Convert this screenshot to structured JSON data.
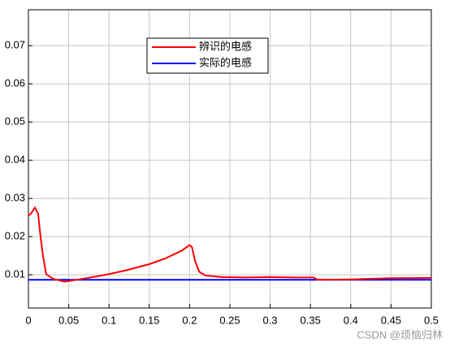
{
  "chart_data": {
    "type": "line",
    "x": [
      0,
      0.003,
      0.008,
      0.012,
      0.015,
      0.018,
      0.022,
      0.03,
      0.045,
      0.06,
      0.08,
      0.1,
      0.12,
      0.15,
      0.17,
      0.19,
      0.2,
      0.203,
      0.207,
      0.212,
      0.22,
      0.24,
      0.27,
      0.3,
      0.33,
      0.354,
      0.358,
      0.365,
      0.4,
      0.45,
      0.5
    ],
    "series": [
      {
        "name": "辨识的电感",
        "color": "#ff0000",
        "values": [
          0.0255,
          0.026,
          0.0276,
          0.026,
          0.02,
          0.015,
          0.0102,
          0.009,
          0.0082,
          0.0087,
          0.0094,
          0.0102,
          0.0111,
          0.0128,
          0.0143,
          0.0163,
          0.0178,
          0.0172,
          0.0135,
          0.0108,
          0.0098,
          0.0094,
          0.0093,
          0.0094,
          0.0093,
          0.0093,
          0.0088,
          0.0087,
          0.0088,
          0.0091,
          0.0092
        ]
      },
      {
        "name": "实际的电感",
        "color": "#0000ff",
        "values": [
          0.0087,
          0.0087,
          0.0087,
          0.0087,
          0.0087,
          0.0087,
          0.0087,
          0.0087,
          0.0087,
          0.0087,
          0.0087,
          0.0087,
          0.0087,
          0.0087,
          0.0087,
          0.0087,
          0.0087,
          0.0087,
          0.0087,
          0.0087,
          0.0087,
          0.0087,
          0.0087,
          0.0087,
          0.0087,
          0.0087,
          0.0087,
          0.0087,
          0.0087,
          0.0087,
          0.0087
        ]
      }
    ],
    "xlim": [
      0,
      0.5
    ],
    "xticks": [
      0,
      0.05,
      0.1,
      0.15,
      0.2,
      0.25,
      0.3,
      0.35,
      0.4,
      0.45,
      0.5
    ],
    "ylim": [
      0.0013,
      0.0794
    ],
    "yticks": [
      0.01,
      0.02,
      0.03,
      0.04,
      0.05,
      0.06,
      0.07
    ],
    "grid": true,
    "legend": "top",
    "watermark": "CSDN @烦恼归林"
  }
}
